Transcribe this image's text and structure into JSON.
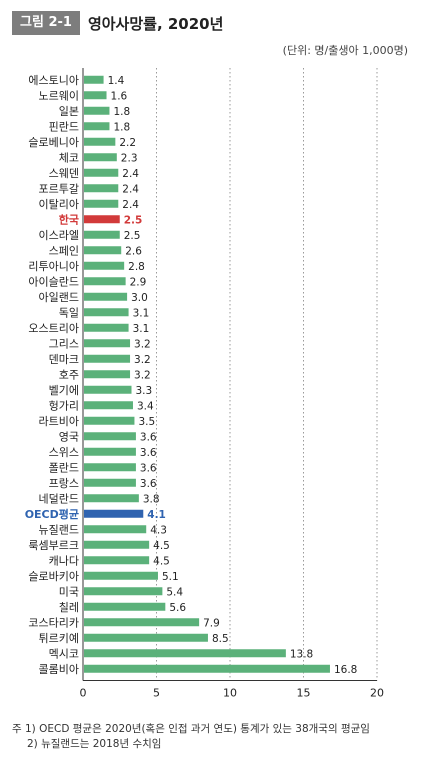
{
  "header": {
    "figure_label": "그림 2-1",
    "title": "영아사망률, 2020년",
    "unit": "(단위: 명/출생아 1,000명)"
  },
  "colors": {
    "bar": "#5bb17a",
    "highlight_korea": "#d23a3a",
    "highlight_oecd": "#2f63b0",
    "badge": "#7d7d7d"
  },
  "chart_data": {
    "type": "bar",
    "orientation": "horizontal",
    "categories": [
      "에스토니아",
      "노르웨이",
      "일본",
      "핀란드",
      "슬로베니아",
      "체코",
      "스웨덴",
      "포르투갈",
      "이탈리아",
      "한국",
      "이스라엘",
      "스페인",
      "리투아니아",
      "아이슬란드",
      "아일랜드",
      "독일",
      "오스트리아",
      "그리스",
      "덴마크",
      "호주",
      "벨기에",
      "헝가리",
      "라트비아",
      "영국",
      "스위스",
      "폴란드",
      "프랑스",
      "네덜란드",
      "OECD평균",
      "뉴질랜드",
      "룩셈부르크",
      "캐나다",
      "슬로바키아",
      "미국",
      "칠레",
      "코스타리카",
      "튀르키예",
      "멕시코",
      "콜롬비아"
    ],
    "values": [
      1.4,
      1.6,
      1.8,
      1.8,
      2.2,
      2.3,
      2.4,
      2.4,
      2.4,
      2.5,
      2.5,
      2.6,
      2.8,
      2.9,
      3.0,
      3.1,
      3.1,
      3.2,
      3.2,
      3.2,
      3.3,
      3.4,
      3.5,
      3.6,
      3.6,
      3.6,
      3.6,
      3.8,
      4.1,
      4.3,
      4.5,
      4.5,
      5.1,
      5.4,
      5.6,
      7.9,
      8.5,
      13.8,
      16.8
    ],
    "value_labels": [
      "1.4",
      "1.6",
      "1.8",
      "1.8",
      "2.2",
      "2.3",
      "2.4",
      "2.4",
      "2.4",
      "2.5",
      "2.5",
      "2.6",
      "2.8",
      "2.9",
      "3.0",
      "3.1",
      "3.1",
      "3.2",
      "3.2",
      "3.2",
      "3.3",
      "3.4",
      "3.5",
      "3.6",
      "3.6",
      "3.6",
      "3.6",
      "3.8",
      "4.1",
      "4.3",
      "4.5",
      "4.5",
      "5.1",
      "5.4",
      "5.6",
      "7.9",
      "8.5",
      "13.8",
      "16.8"
    ],
    "highlights": {
      "한국": "korea",
      "OECD평균": "oecd"
    },
    "xlim": [
      0,
      20
    ],
    "xticks": [
      "0",
      "5",
      "10",
      "15",
      "20"
    ],
    "grid": "vertical dashed"
  },
  "notes": [
    "주 1) OECD 평균은 2020년(혹은 인접 과거 연도) 통계가 있는 38개국의 평균임",
    "2) 뉴질랜드는 2018년 수치임"
  ]
}
